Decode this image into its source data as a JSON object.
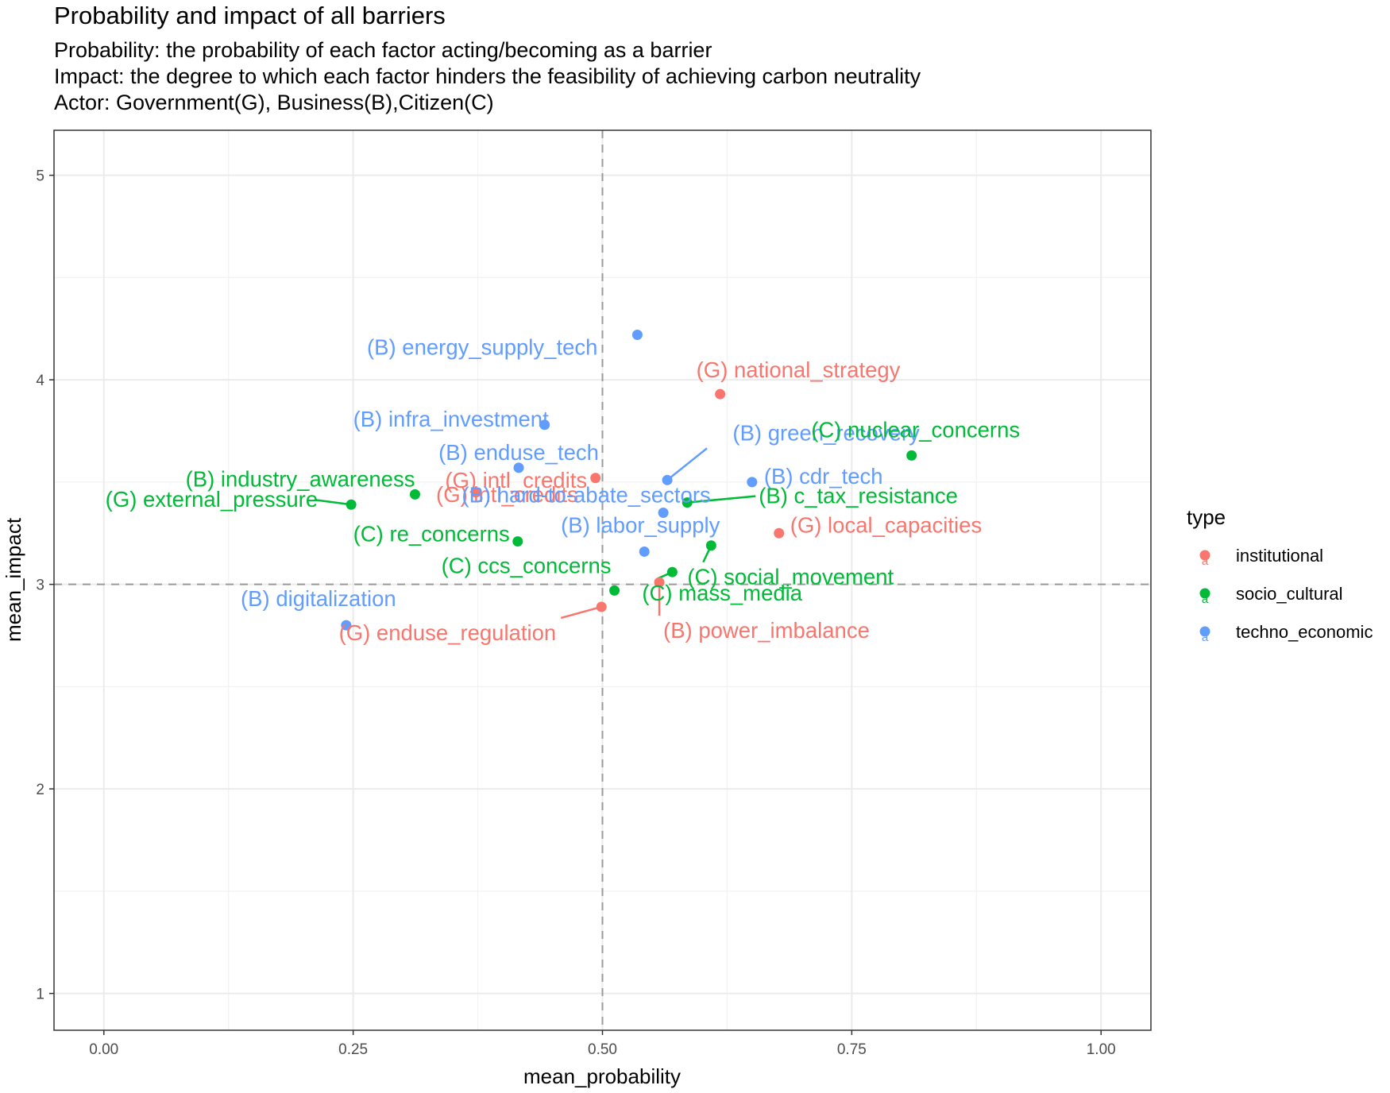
{
  "chart_data": {
    "type": "scatter",
    "title": "Probability and impact of all barriers",
    "subtitle_lines": [
      "Probability: the probability of each factor acting/becoming as a barrier",
      "Impact: the degree to which each factor hinders the feasibility of achieving carbon neutrality",
      "Actor: Government(G), Business(B),Citizen(C)"
    ],
    "xlabel": "mean_probability",
    "ylabel": "mean_impact",
    "xlim": [
      -0.05,
      1.05
    ],
    "ylim": [
      0.82,
      5.22
    ],
    "x_ticks": [
      0.0,
      0.25,
      0.5,
      0.75,
      1.0
    ],
    "x_tick_labels": [
      "0.00",
      "0.25",
      "0.50",
      "0.75",
      "1.00"
    ],
    "y_ticks": [
      1,
      2,
      3,
      4,
      5
    ],
    "y_tick_labels": [
      "1",
      "2",
      "3",
      "4",
      "5"
    ],
    "reference_lines": {
      "x": 0.5,
      "y": 3
    },
    "grid": true,
    "legend_title": "type",
    "legend_position": "right",
    "series": [
      {
        "name": "institutional",
        "color": "#F8766D"
      },
      {
        "name": "socio_cultural",
        "color": "#00BA38"
      },
      {
        "name": "techno_economic",
        "color": "#619CFF"
      }
    ],
    "points": [
      {
        "label": "(B) energy_supply_tech",
        "type": "techno_economic",
        "x": 0.535,
        "y": 4.22
      },
      {
        "label": "(G) national_strategy",
        "type": "institutional",
        "x": 0.618,
        "y": 3.93
      },
      {
        "label": "(B) infra_investment",
        "type": "techno_economic",
        "x": 0.442,
        "y": 3.78
      },
      {
        "label": "(B) enduse_tech",
        "type": "techno_economic",
        "x": 0.416,
        "y": 3.57
      },
      {
        "label": "(B) green_recovery",
        "type": "techno_economic",
        "x": 0.565,
        "y": 3.51
      },
      {
        "label": "(C) nuclear_concerns",
        "type": "socio_cultural",
        "x": 0.81,
        "y": 3.63
      },
      {
        "label": "(B) cdr_tech",
        "type": "techno_economic",
        "x": 0.65,
        "y": 3.5
      },
      {
        "label": "(B) industry_awareness",
        "type": "socio_cultural",
        "x": 0.312,
        "y": 3.44
      },
      {
        "label": "(G) intl_credits",
        "type": "institutional",
        "x": 0.493,
        "y": 3.52
      },
      {
        "label": "(G) intl_credits",
        "type": "institutional",
        "x": 0.373,
        "y": 3.45
      },
      {
        "label": "(G) external_pressure",
        "type": "socio_cultural",
        "x": 0.248,
        "y": 3.39
      },
      {
        "label": "(B) hard-to-abate_sectors",
        "type": "techno_economic",
        "x": 0.561,
        "y": 3.35
      },
      {
        "label": "(B) c_tax_resistance",
        "type": "socio_cultural",
        "x": 0.585,
        "y": 3.4
      },
      {
        "label": "(C) re_concerns",
        "type": "socio_cultural",
        "x": 0.415,
        "y": 3.21
      },
      {
        "label": "(B) labor_supply",
        "type": "techno_economic",
        "x": 0.542,
        "y": 3.16
      },
      {
        "label": "(G) local_capacities",
        "type": "institutional",
        "x": 0.677,
        "y": 3.25
      },
      {
        "label": "(C) social_movement",
        "type": "socio_cultural",
        "x": 0.609,
        "y": 3.19
      },
      {
        "label": "(C) ccs_concerns",
        "type": "socio_cultural",
        "x": 0.512,
        "y": 2.97
      },
      {
        "label": "(C) mass_media",
        "type": "socio_cultural",
        "x": 0.57,
        "y": 3.06
      },
      {
        "label": "(B) power_imbalance",
        "type": "institutional",
        "x": 0.557,
        "y": 3.01
      },
      {
        "label": "(G) enduse_regulation",
        "type": "institutional",
        "x": 0.499,
        "y": 2.89
      },
      {
        "label": "(B) digitalization",
        "type": "techno_economic",
        "x": 0.243,
        "y": 2.8
      }
    ]
  }
}
